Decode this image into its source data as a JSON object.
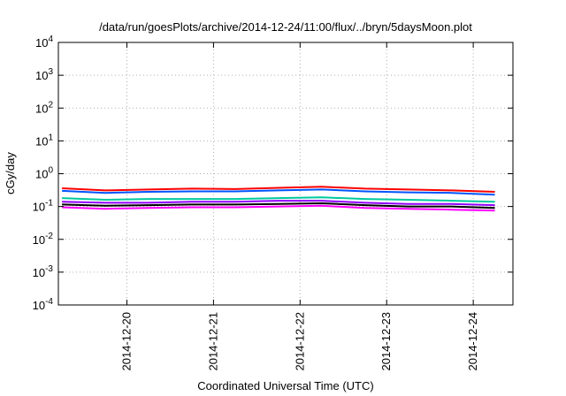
{
  "chart_data": {
    "type": "line",
    "title": "/data/run/goesPlots/archive/2014-12-24/11:00/flux/../bryn/5daysMoon.plot",
    "xlabel": "Coordinated Universal Time (UTC)",
    "ylabel": "cGy/day",
    "yscale": "log",
    "ylim": [
      0.0001,
      10000
    ],
    "y_ticks": [
      {
        "base": "10",
        "exp": "-4"
      },
      {
        "base": "10",
        "exp": "-3"
      },
      {
        "base": "10",
        "exp": "-2"
      },
      {
        "base": "10",
        "exp": "-1"
      },
      {
        "base": "10",
        "exp": "0"
      },
      {
        "base": "10",
        "exp": "1"
      },
      {
        "base": "10",
        "exp": "2"
      },
      {
        "base": "10",
        "exp": "3"
      },
      {
        "base": "10",
        "exp": "4"
      }
    ],
    "xlim": [
      "2014-12-19T05:00",
      "2014-12-24T11:00"
    ],
    "x_ticks": [
      "2014-12-20",
      "2014-12-21",
      "2014-12-22",
      "2014-12-23",
      "2014-12-24"
    ],
    "grid": true,
    "x": [
      "2014-12-19T06:00",
      "2014-12-19T18:00",
      "2014-12-20T06:00",
      "2014-12-20T18:00",
      "2014-12-21T06:00",
      "2014-12-21T18:00",
      "2014-12-22T06:00",
      "2014-12-22T18:00",
      "2014-12-23T06:00",
      "2014-12-23T18:00",
      "2014-12-24T06:00"
    ],
    "series": [
      {
        "color": "#ff0000",
        "values": [
          0.36,
          0.31,
          0.33,
          0.35,
          0.34,
          0.37,
          0.4,
          0.35,
          0.33,
          0.31,
          0.28
        ]
      },
      {
        "color": "#0055ff",
        "values": [
          0.3,
          0.26,
          0.28,
          0.29,
          0.29,
          0.31,
          0.33,
          0.29,
          0.27,
          0.26,
          0.23
        ]
      },
      {
        "color": "#00c8a0",
        "values": [
          0.18,
          0.16,
          0.17,
          0.17,
          0.17,
          0.18,
          0.19,
          0.17,
          0.16,
          0.15,
          0.14
        ]
      },
      {
        "color": "#9000ff",
        "values": [
          0.14,
          0.13,
          0.13,
          0.14,
          0.14,
          0.15,
          0.15,
          0.13,
          0.12,
          0.12,
          0.11
        ]
      },
      {
        "color": "#000000",
        "values": [
          0.115,
          0.105,
          0.11,
          0.115,
          0.115,
          0.12,
          0.125,
          0.11,
          0.1,
          0.1,
          0.09
        ]
      },
      {
        "color": "#ff00ff",
        "values": [
          0.095,
          0.085,
          0.09,
          0.095,
          0.095,
          0.1,
          0.105,
          0.09,
          0.085,
          0.08,
          0.075
        ]
      }
    ]
  }
}
